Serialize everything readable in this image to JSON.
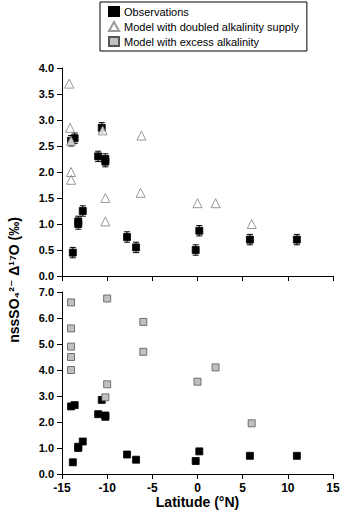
{
  "chart_data": [
    {
      "type": "scatter",
      "ylabel": "nssSO₄²⁻ Δ¹⁷O (‰)",
      "legend": "top",
      "grid": false,
      "tick_labels": "y",
      "xlim": [
        -15,
        15
      ],
      "xticks": [
        -15,
        -10,
        -5,
        0,
        5,
        10,
        15
      ],
      "ylim": [
        0,
        4
      ],
      "yticks": [
        {
          "value": 0,
          "label": "0.0"
        },
        {
          "value": 0.5,
          "label": "0.5"
        },
        {
          "value": 1,
          "label": "1.0"
        },
        {
          "value": 1.5,
          "label": "1.5"
        },
        {
          "value": 2,
          "label": "2.0"
        },
        {
          "value": 2.5,
          "label": "2.5"
        },
        {
          "value": 3,
          "label": "3.0"
        },
        {
          "value": 3.5,
          "label": "3.5"
        },
        {
          "value": 4,
          "label": "4.0"
        }
      ],
      "series": [
        {
          "name": "Observations",
          "color": "#000000",
          "marker": "square",
          "x": [
            -13.8,
            -13.2,
            -13.2,
            -12.7,
            -14.0,
            -13.6,
            -11.0,
            -10.6,
            -10.2,
            -10.2,
            -7.8,
            -6.8,
            -0.2,
            0.2,
            5.8,
            11.0
          ],
          "values": [
            0.45,
            1.0,
            1.05,
            1.25,
            2.6,
            2.65,
            2.3,
            2.85,
            2.25,
            2.2,
            0.75,
            0.55,
            0.5,
            0.87,
            0.7,
            0.7
          ],
          "errors": [
            0.1,
            0.1,
            0.1,
            0.1,
            0.1,
            0.1,
            0.1,
            0.1,
            0.1,
            0.1,
            0.1,
            0.1,
            0.1,
            0.1,
            0.1,
            0.1
          ]
        },
        {
          "name": "Model with doubled alkalinity supply",
          "color": "#808080",
          "marker": "triangle_open",
          "x": [
            -14.2,
            -14.1,
            -14.0,
            -14.0,
            -14.0,
            -10.5,
            -10.2,
            -10.2,
            -6.2,
            -6.3,
            0.0,
            2.0,
            6.0
          ],
          "values": [
            3.7,
            2.85,
            2.6,
            2.0,
            1.85,
            2.8,
            1.5,
            1.05,
            2.7,
            1.6,
            1.4,
            1.4,
            1.0
          ]
        }
      ]
    },
    {
      "type": "scatter",
      "xlabel": "Latitude (°N)",
      "grid": false,
      "xlim": [
        -15,
        15
      ],
      "xticks": [
        -15,
        -10,
        -5,
        0,
        5,
        10,
        15
      ],
      "ylim": [
        0,
        7
      ],
      "yticks": [
        {
          "value": 0,
          "label": "0.0"
        },
        {
          "value": 1,
          "label": "1.0"
        },
        {
          "value": 2,
          "label": "2.0"
        },
        {
          "value": 3,
          "label": "3.0"
        },
        {
          "value": 4,
          "label": "4.0"
        },
        {
          "value": 5,
          "label": "5.0"
        },
        {
          "value": 6,
          "label": "6.0"
        },
        {
          "value": 7,
          "label": "7.0"
        }
      ],
      "series": [
        {
          "name": "Observations",
          "color": "#000000",
          "marker": "square",
          "x": [
            -13.8,
            -13.2,
            -13.2,
            -12.7,
            -14.0,
            -13.6,
            -11.0,
            -10.6,
            -10.2,
            -10.2,
            -7.8,
            -6.8,
            -0.2,
            0.2,
            5.8,
            11.0
          ],
          "values": [
            0.45,
            1.0,
            1.05,
            1.25,
            2.6,
            2.65,
            2.3,
            2.85,
            2.25,
            2.2,
            0.75,
            0.55,
            0.5,
            0.87,
            0.7,
            0.7
          ]
        },
        {
          "name": "Model with excess alkalinity",
          "color": "#c0c0c0",
          "marker": "square",
          "x": [
            -14.0,
            -14.0,
            -14.0,
            -14.0,
            -14.0,
            -10.0,
            -10.0,
            -10.2,
            -6.0,
            -6.0,
            0.0,
            2.0,
            6.0
          ],
          "values": [
            6.6,
            5.6,
            4.9,
            4.5,
            4.0,
            6.75,
            3.45,
            2.95,
            5.85,
            4.7,
            3.55,
            4.1,
            1.95
          ]
        }
      ]
    }
  ]
}
